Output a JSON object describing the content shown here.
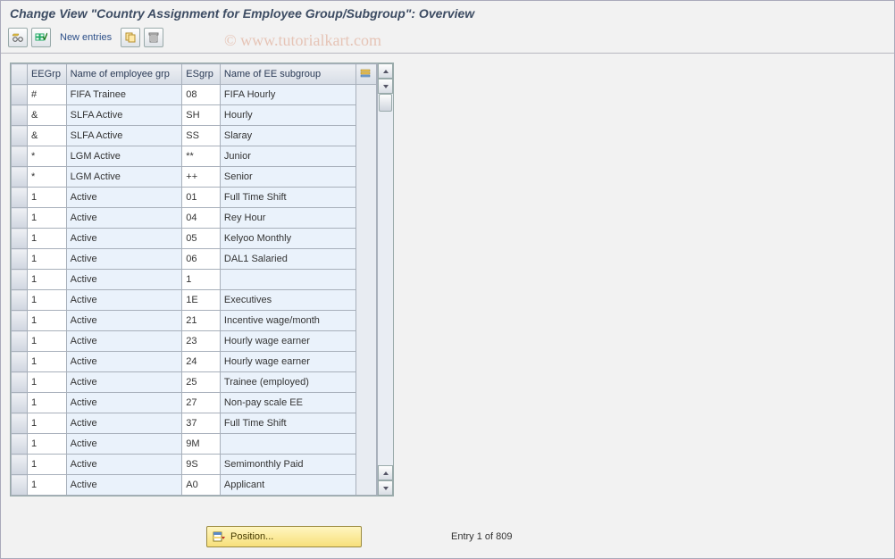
{
  "window": {
    "title": "Change View \"Country Assignment for Employee Group/Subgroup\": Overview"
  },
  "toolbar": {
    "new_entries_label": "New entries"
  },
  "columns": {
    "eegrp": "EEGrp",
    "name1": "Name of employee grp",
    "esgrp": "ESgrp",
    "name2": "Name of EE subgroup"
  },
  "rows": [
    {
      "eegrp": "#",
      "name1": "FIFA Trainee",
      "esgrp": "08",
      "name2": "FIFA Hourly"
    },
    {
      "eegrp": "&",
      "name1": "SLFA Active",
      "esgrp": "SH",
      "name2": "Hourly"
    },
    {
      "eegrp": "&",
      "name1": "SLFA Active",
      "esgrp": "SS",
      "name2": "Slaray"
    },
    {
      "eegrp": "*",
      "name1": "LGM Active",
      "esgrp": "**",
      "name2": "Junior"
    },
    {
      "eegrp": "*",
      "name1": "LGM Active",
      "esgrp": "++",
      "name2": "Senior"
    },
    {
      "eegrp": "1",
      "name1": "Active",
      "esgrp": "01",
      "name2": "Full Time Shift"
    },
    {
      "eegrp": "1",
      "name1": "Active",
      "esgrp": "04",
      "name2": "Rey Hour"
    },
    {
      "eegrp": "1",
      "name1": "Active",
      "esgrp": "05",
      "name2": "Kelyoo Monthly"
    },
    {
      "eegrp": "1",
      "name1": "Active",
      "esgrp": "06",
      "name2": "DAL1 Salaried"
    },
    {
      "eegrp": "1",
      "name1": "Active",
      "esgrp": "1",
      "name2": ""
    },
    {
      "eegrp": "1",
      "name1": "Active",
      "esgrp": "1E",
      "name2": "Executives"
    },
    {
      "eegrp": "1",
      "name1": "Active",
      "esgrp": "21",
      "name2": "Incentive wage/month"
    },
    {
      "eegrp": "1",
      "name1": "Active",
      "esgrp": "23",
      "name2": "Hourly wage earner"
    },
    {
      "eegrp": "1",
      "name1": "Active",
      "esgrp": "24",
      "name2": "Hourly wage earner"
    },
    {
      "eegrp": "1",
      "name1": "Active",
      "esgrp": "25",
      "name2": "Trainee (employed)"
    },
    {
      "eegrp": "1",
      "name1": "Active",
      "esgrp": "27",
      "name2": "Non-pay scale EE"
    },
    {
      "eegrp": "1",
      "name1": "Active",
      "esgrp": "37",
      "name2": "Full Time Shift"
    },
    {
      "eegrp": "1",
      "name1": "Active",
      "esgrp": "9M",
      "name2": ""
    },
    {
      "eegrp": "1",
      "name1": "Active",
      "esgrp": "9S",
      "name2": "Semimonthly Paid"
    },
    {
      "eegrp": "1",
      "name1": "Active",
      "esgrp": "A0",
      "name2": "Applicant"
    }
  ],
  "footer": {
    "position_label": "Position...",
    "status": "Entry 1 of 809"
  },
  "watermark": "© www.tutorialkart.com",
  "colors": {
    "page_bg": "#f2f2f2",
    "border": "#a8b0bb",
    "header_grad_top": "#eef0f4",
    "header_grad_bot": "#d7dde6",
    "edit_bg": "#ffffff",
    "ro_bg": "#eaf2fb",
    "posbtn_top": "#fff6c0",
    "posbtn_bot": "#f7df7a"
  }
}
